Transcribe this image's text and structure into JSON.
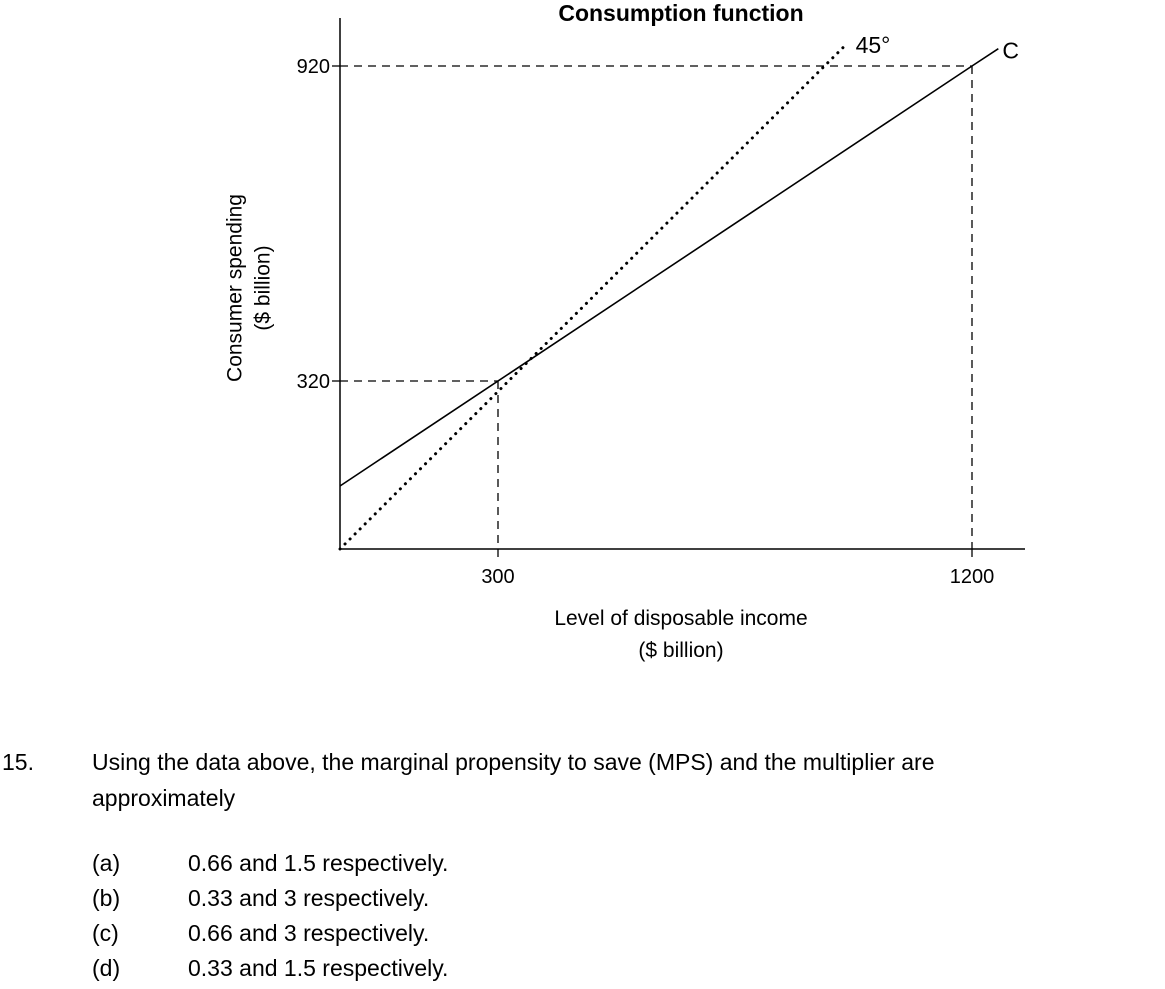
{
  "chart_data": {
    "type": "line",
    "title": "Consumption function",
    "xlabel_line1": "Level of disposable income",
    "xlabel_line2": "($ billion)",
    "ylabel_line1": "Consumer spending",
    "ylabel_line2": "($ billion)",
    "xlim": [
      0,
      1380
    ],
    "ylim": [
      0,
      1040
    ],
    "x_ticks": [
      300,
      1200
    ],
    "y_ticks": [
      320,
      920
    ],
    "series": [
      {
        "name": "C",
        "style": "solid",
        "x": [
          0,
          1200,
          1250
        ],
        "y": [
          120,
          920,
          953
        ]
      },
      {
        "name": "45°",
        "style": "dotted",
        "x": [
          0,
          960
        ],
        "y": [
          0,
          960
        ]
      }
    ],
    "reference_lines": [
      {
        "point": [
          300,
          320
        ]
      },
      {
        "point": [
          1200,
          920
        ]
      }
    ],
    "annotations": {
      "c_label": "C",
      "angle_label": "45°"
    },
    "grid": false,
    "legend": "none"
  },
  "question": {
    "number": "15.",
    "text_line1": "Using the data above, the marginal propensity to save (MPS) and the multiplier are",
    "text_line2": "approximately",
    "options": [
      {
        "letter": "(a)",
        "text": "0.66 and 1.5 respectively."
      },
      {
        "letter": "(b)",
        "text": "0.33 and 3 respectively."
      },
      {
        "letter": "(c)",
        "text": "0.66 and 3 respectively."
      },
      {
        "letter": "(d)",
        "text": "0.33 and 1.5 respectively."
      }
    ]
  }
}
